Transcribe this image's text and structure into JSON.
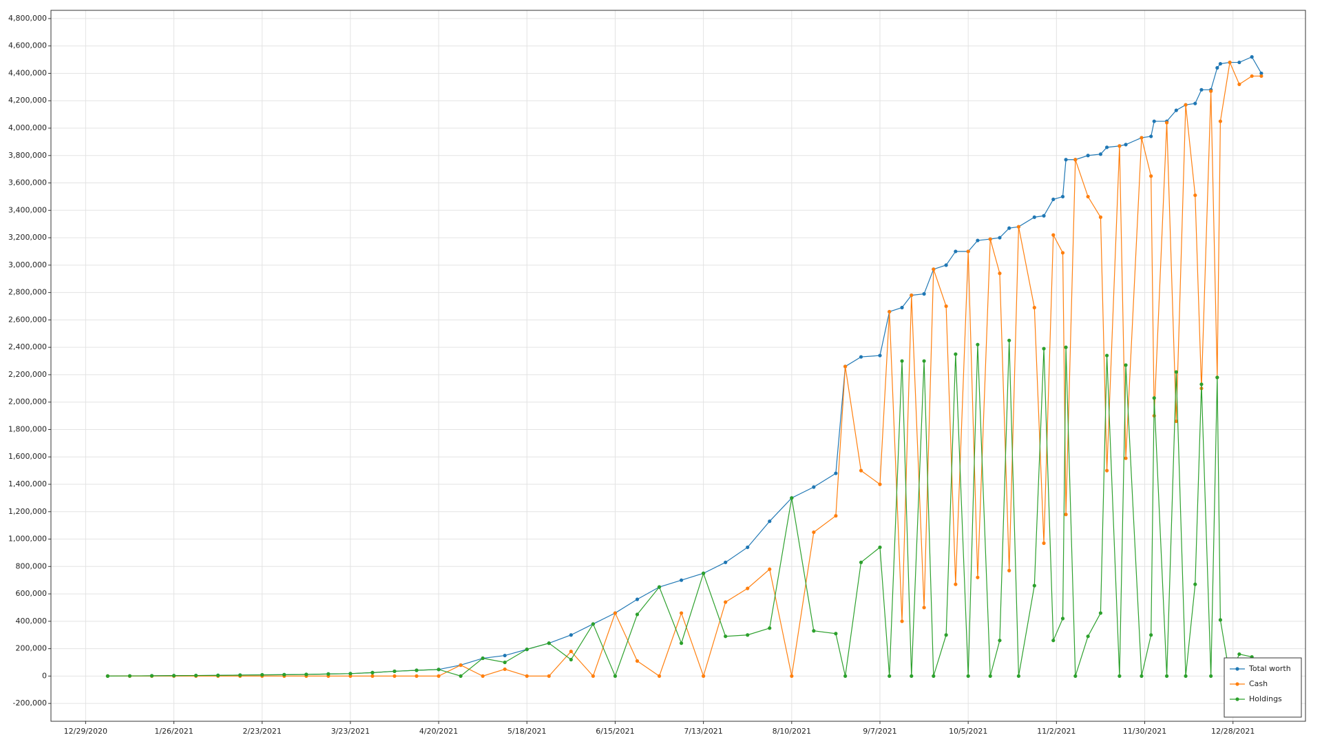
{
  "chart_data": {
    "type": "line",
    "x": [
      "1/5/2021",
      "1/12/2021",
      "1/19/2021",
      "1/26/2021",
      "2/2/2021",
      "2/9/2021",
      "2/16/2021",
      "2/23/2021",
      "3/2/2021",
      "3/9/2021",
      "3/16/2021",
      "3/23/2021",
      "3/30/2021",
      "4/6/2021",
      "4/13/2021",
      "4/20/2021",
      "4/27/2021",
      "5/4/2021",
      "5/11/2021",
      "5/18/2021",
      "5/25/2021",
      "6/1/2021",
      "6/8/2021",
      "6/15/2021",
      "6/22/2021",
      "6/29/2021",
      "7/6/2021",
      "7/13/2021",
      "7/20/2021",
      "7/27/2021",
      "8/3/2021",
      "8/10/2021",
      "8/17/2021",
      "8/24/2021",
      "8/27/2021",
      "9/1/2021",
      "9/7/2021",
      "9/10/2021",
      "9/14/2021",
      "9/17/2021",
      "9/21/2021",
      "9/24/2021",
      "9/28/2021",
      "10/1/2021",
      "10/5/2021",
      "10/8/2021",
      "10/12/2021",
      "10/15/2021",
      "10/18/2021",
      "10/21/2021",
      "10/26/2021",
      "10/29/2021",
      "11/1/2021",
      "11/4/2021",
      "11/5/2021",
      "11/8/2021",
      "11/12/2021",
      "11/16/2021",
      "11/18/2021",
      "11/22/2021",
      "11/24/2021",
      "11/29/2021",
      "12/2/2021",
      "12/3/2021",
      "12/7/2021",
      "12/10/2021",
      "12/13/2021",
      "12/16/2021",
      "12/18/2021",
      "12/21/2021",
      "12/23/2021",
      "12/24/2021",
      "12/27/2021",
      "12/30/2021",
      "1/3/2022",
      "1/6/2022"
    ],
    "series": [
      {
        "name": "Total worth",
        "color": "#1f77b4",
        "values": [
          0,
          1000,
          2000,
          3000,
          4000,
          5000,
          7000,
          9000,
          10000,
          12000,
          15000,
          18000,
          25000,
          35000,
          42000,
          48000,
          80000,
          130000,
          150000,
          195000,
          240000,
          300000,
          380000,
          460000,
          560000,
          650000,
          700000,
          750000,
          830000,
          940000,
          1130000,
          1300000,
          1380000,
          1480000,
          2260000,
          2330000,
          2340000,
          2660000,
          2690000,
          2780000,
          2790000,
          2970000,
          3000000,
          3100000,
          3100000,
          3180000,
          3190000,
          3200000,
          3270000,
          3280000,
          3350000,
          3360000,
          3480000,
          3500000,
          3770000,
          3770000,
          3800000,
          3810000,
          3860000,
          3870000,
          3880000,
          3930000,
          3940000,
          4050000,
          4050000,
          4130000,
          4170000,
          4180000,
          4280000,
          4280000,
          4440000,
          4470000,
          4480000,
          4480000,
          4520000,
          4400000
        ]
      },
      {
        "name": "Cash",
        "color": "#ff7f0e",
        "values": [
          0,
          0,
          0,
          0,
          0,
          0,
          0,
          0,
          0,
          0,
          0,
          0,
          0,
          0,
          0,
          0,
          80000,
          0,
          50000,
          0,
          0,
          180000,
          0,
          460000,
          110000,
          0,
          460000,
          0,
          540000,
          640000,
          780000,
          0,
          1050000,
          1170000,
          2260000,
          1500000,
          1400000,
          2660000,
          400000,
          2780000,
          500000,
          2970000,
          2700000,
          670000,
          3100000,
          720000,
          3190000,
          2940000,
          770000,
          3280000,
          2690000,
          970000,
          3220000,
          3090000,
          1180000,
          3770000,
          3500000,
          3350000,
          1500000,
          3870000,
          1590000,
          3930000,
          3650000,
          1900000,
          4040000,
          1860000,
          4170000,
          3510000,
          2100000,
          4270000,
          2180000,
          4050000,
          4480000,
          4320000,
          4380000,
          4380000
        ]
      },
      {
        "name": "Holdings",
        "color": "#2ca02c",
        "values": [
          0,
          1000,
          2000,
          3000,
          4000,
          5000,
          7000,
          9000,
          10000,
          12000,
          15000,
          18000,
          25000,
          35000,
          42000,
          48000,
          0,
          130000,
          100000,
          195000,
          240000,
          120000,
          380000,
          0,
          450000,
          650000,
          240000,
          750000,
          290000,
          300000,
          350000,
          1300000,
          330000,
          310000,
          0,
          830000,
          940000,
          0,
          2300000,
          0,
          2300000,
          0,
          300000,
          2350000,
          0,
          2420000,
          0,
          260000,
          2450000,
          0,
          660000,
          2390000,
          260000,
          420000,
          2400000,
          0,
          290000,
          460000,
          2340000,
          0,
          2270000,
          0,
          300000,
          2030000,
          0,
          2220000,
          0,
          670000,
          2130000,
          0,
          2180000,
          410000,
          0,
          160000,
          140000,
          20000
        ]
      }
    ],
    "xlim": [
      "12/18/2020",
      "1/20/2022"
    ],
    "xticks": [
      "12/29/2020",
      "1/26/2021",
      "2/23/2021",
      "3/23/2021",
      "4/20/2021",
      "5/18/2021",
      "6/15/2021",
      "7/13/2021",
      "8/10/2021",
      "9/7/2021",
      "10/5/2021",
      "11/2/2021",
      "11/30/2021",
      "12/28/2021"
    ],
    "ylim": [
      -330000,
      4860000
    ],
    "yticks": [
      {
        "value": -200000,
        "label": "-200,000"
      },
      0,
      {
        "value": 200000,
        "label": "200,000"
      },
      {
        "value": 400000,
        "label": "400,000"
      },
      {
        "value": 600000,
        "label": "600,000"
      },
      {
        "value": 800000,
        "label": "800,000"
      },
      {
        "value": 1000000,
        "label": "1,000,000"
      },
      {
        "value": 1200000,
        "label": "1,200,000"
      },
      {
        "value": 1400000,
        "label": "1,400,000"
      },
      {
        "value": 1600000,
        "label": "1,600,000"
      },
      {
        "value": 1800000,
        "label": "1,800,000"
      },
      {
        "value": 2000000,
        "label": "2,000,000"
      },
      {
        "value": 2200000,
        "label": "2,200,000"
      },
      {
        "value": 2400000,
        "label": "2,400,000"
      },
      {
        "value": 2600000,
        "label": "2,600,000"
      },
      {
        "value": 2800000,
        "label": "2,800,000"
      },
      {
        "value": 3000000,
        "label": "3,000,000"
      },
      {
        "value": 3200000,
        "label": "3,200,000"
      },
      {
        "value": 3400000,
        "label": "3,400,000"
      },
      {
        "value": 3600000,
        "label": "3,600,000"
      },
      {
        "value": 3800000,
        "label": "3,800,000"
      },
      {
        "value": 4000000,
        "label": "4,000,000"
      },
      {
        "value": 4200000,
        "label": "4,200,000"
      },
      {
        "value": 4400000,
        "label": "4,400,000"
      },
      {
        "value": 4600000,
        "label": "4,600,000"
      },
      {
        "value": 4800000,
        "label": "4,800,000"
      }
    ],
    "grid": true,
    "legend": "bottom-right"
  }
}
